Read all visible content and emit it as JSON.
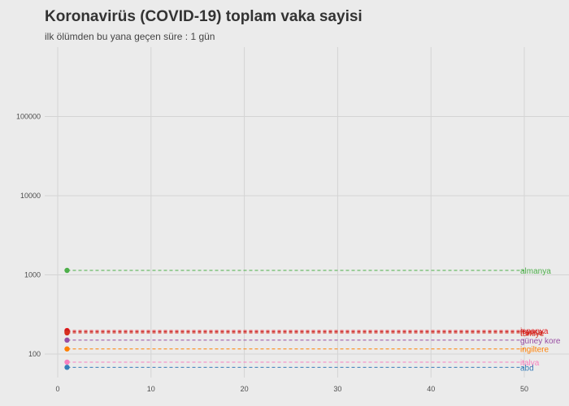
{
  "chart_data": {
    "type": "line",
    "title": "Koronavirüs (COVID-19) toplam vaka sayisi",
    "subtitle": "ilk ölümden bu yana geçen süre : 1 gün",
    "xlabel": "",
    "ylabel": "",
    "x_scale": "linear",
    "y_scale": "log",
    "xlim": [
      0,
      52
    ],
    "ylim": [
      50,
      800000
    ],
    "x_ticks": [
      0,
      10,
      20,
      30,
      40,
      50
    ],
    "y_ticks": [
      100,
      1000,
      10000,
      100000
    ],
    "x_tick_labels": [
      "0",
      "10",
      "20",
      "30",
      "40",
      "50"
    ],
    "y_tick_labels": [
      "100",
      "1000",
      "10000",
      "100000"
    ],
    "grid": true,
    "legend": "labels at right end of lines",
    "series": [
      {
        "name": "almanya",
        "color": "#4daf4a",
        "point": [
          1,
          1139
        ],
        "end": [
          50,
          1139
        ]
      },
      {
        "name": "ispanya",
        "color": "#e41a1c",
        "point": [
          1,
          198
        ],
        "end": [
          50,
          198
        ]
      },
      {
        "name": "fransa",
        "color": "#c51b1b",
        "point": [
          1,
          191
        ],
        "end": [
          50,
          191
        ]
      },
      {
        "name": "türkiye",
        "color": "#d7301f",
        "point": [
          1,
          185
        ],
        "end": [
          50,
          185
        ]
      },
      {
        "name": "güney kore",
        "color": "#984ea3",
        "point": [
          1,
          150
        ],
        "end": [
          50,
          150
        ]
      },
      {
        "name": "ingiltere",
        "color": "#ff7f00",
        "point": [
          1,
          116
        ],
        "end": [
          50,
          116
        ]
      },
      {
        "name": "italya",
        "color": "#f781bf",
        "point": [
          1,
          79
        ],
        "end": [
          50,
          79
        ]
      },
      {
        "name": "abd",
        "color": "#377eb8",
        "point": [
          1,
          68
        ],
        "end": [
          50,
          68
        ]
      }
    ]
  }
}
